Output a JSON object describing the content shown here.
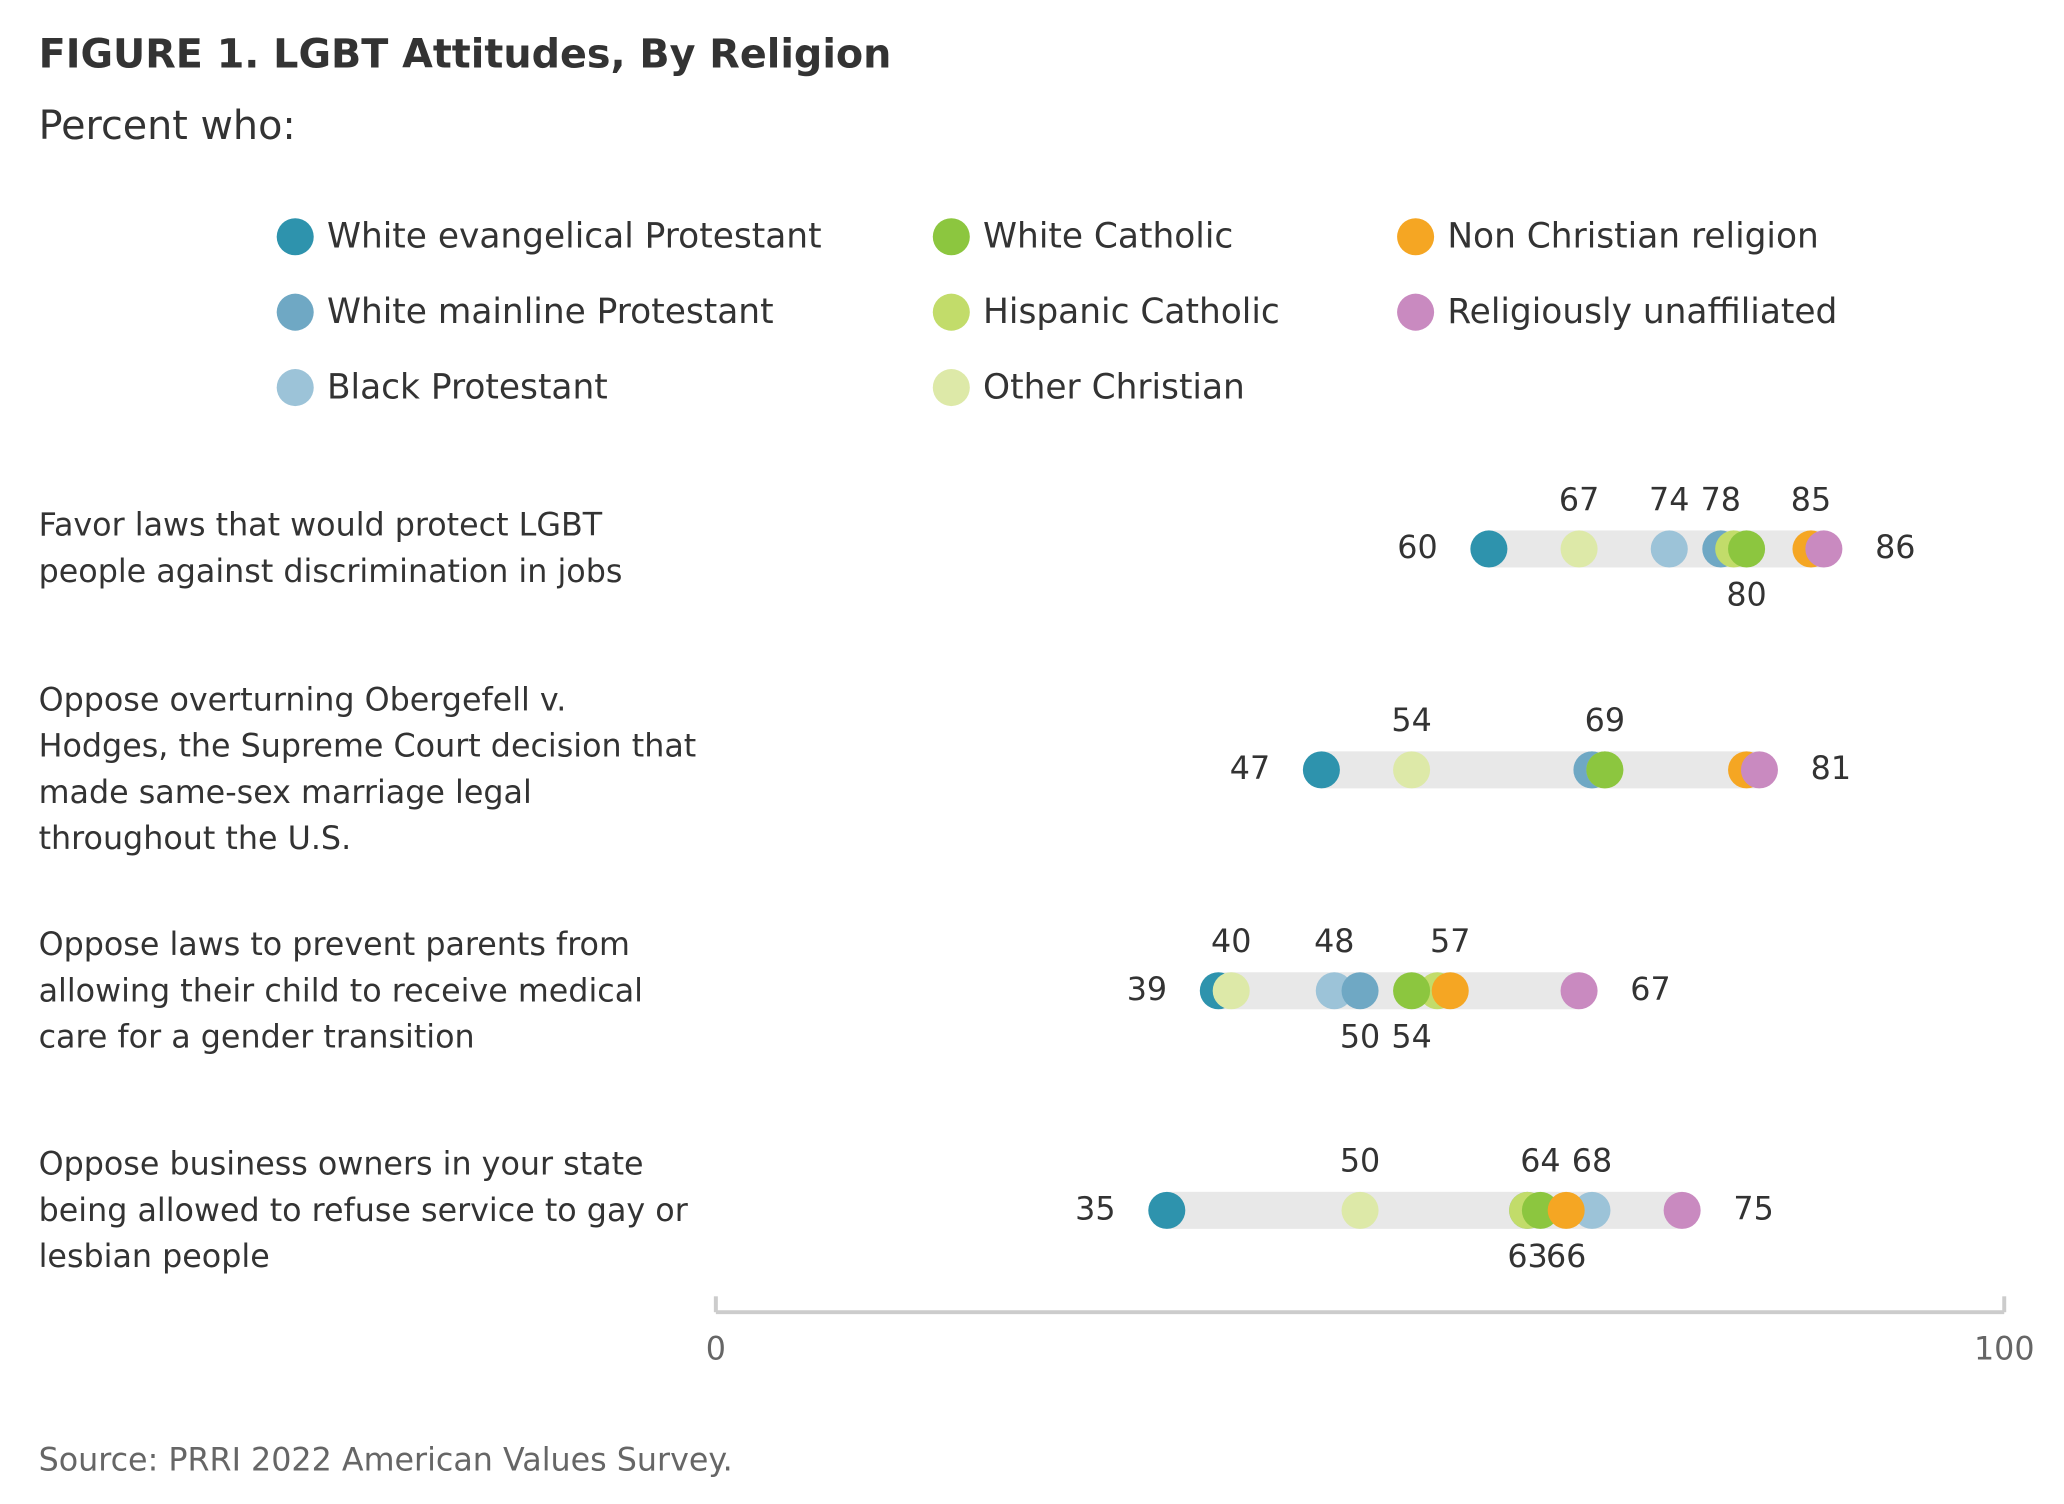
{
  "chart_data": {
    "type": "dot",
    "title": "FIGURE 1.  LGBT Attitudes, By Religion",
    "subtitle": "Percent who:",
    "source": "Source: PRRI 2022 American Values Survey.",
    "categories": [
      "Favor laws that would protect LGBT people against discrimination in jobs",
      "Oppose overturning Obergefell v. Hodges, the Supreme Court decision that made same-sex marriage legal throughout the U.S.",
      "Oppose laws to prevent parents from allowing their child to receive medical care for a gender transition",
      "Oppose business owners in your state being allowed to refuse service to gay or lesbian people"
    ],
    "series": [
      {
        "name": "White evangelical Protestant",
        "color": "#2e93ad",
        "values": [
          60,
          47,
          39,
          35
        ]
      },
      {
        "name": "White mainline Protestant",
        "color": "#6fa8c4",
        "values": [
          78,
          68,
          50,
          63
        ]
      },
      {
        "name": "Black Protestant",
        "color": "#9cc3d8",
        "values": [
          74,
          68,
          48,
          68
        ]
      },
      {
        "name": "White Catholic",
        "color": "#8cc63f",
        "values": [
          80,
          69,
          54,
          64
        ]
      },
      {
        "name": "Hispanic Catholic",
        "color": "#c2dc6a",
        "values": [
          79,
          69,
          56,
          63
        ]
      },
      {
        "name": "Other Christian",
        "color": "#dde9a8",
        "values": [
          67,
          54,
          40,
          50
        ]
      },
      {
        "name": "Non Christian religion",
        "color": "#f5a623",
        "values": [
          85,
          80,
          57,
          66
        ]
      },
      {
        "name": "Religiously unaffiliated",
        "color": "#c98ac0",
        "values": [
          86,
          81,
          67,
          75
        ]
      }
    ],
    "xlim": [
      0,
      100
    ],
    "xticks": [
      0,
      100
    ]
  }
}
